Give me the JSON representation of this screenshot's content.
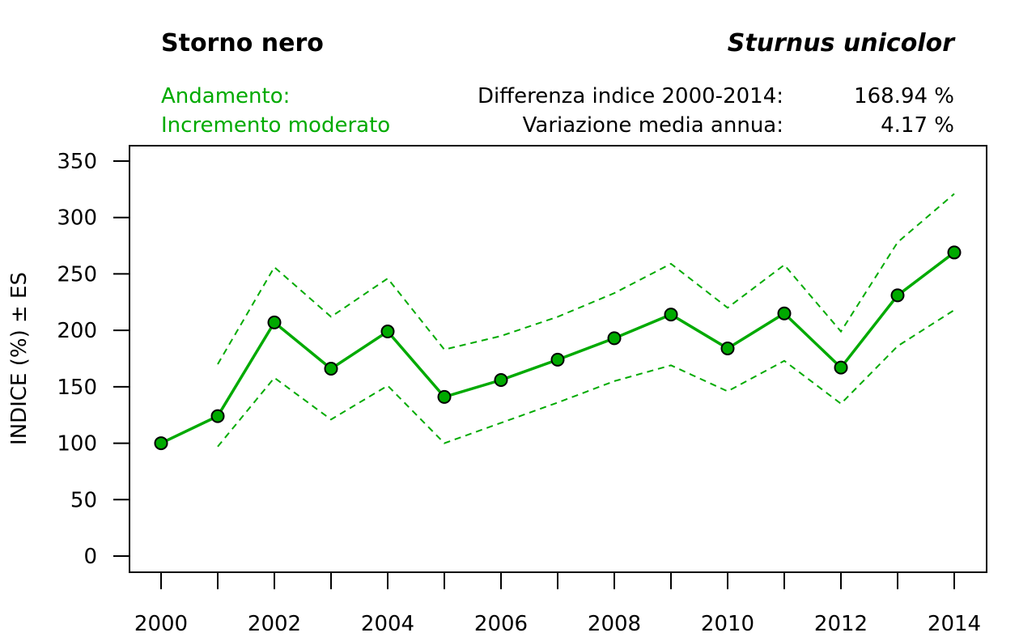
{
  "header": {
    "common_name": "Storno nero",
    "scientific_name": "Sturnus unicolor",
    "trend_label": "Andamento:",
    "trend_value": "Incremento moderato",
    "diff_label": "Differenza indice 2000-2014:",
    "diff_value": "168.94 %",
    "annual_label": "Variazione media annua:",
    "annual_value": "4.17 %"
  },
  "chart_data": {
    "type": "line",
    "xlabel": "",
    "ylabel": "INDICE (%) ± ES",
    "xlim": [
      2000,
      2014
    ],
    "ylim": [
      0,
      350
    ],
    "yticks": [
      0,
      50,
      100,
      150,
      200,
      250,
      300,
      350
    ],
    "xticks": [
      2000,
      2001,
      2002,
      2003,
      2004,
      2005,
      2006,
      2007,
      2008,
      2009,
      2010,
      2011,
      2012,
      2013,
      2014
    ],
    "xtick_labels": [
      "2000",
      "2002",
      "2004",
      "2006",
      "2008",
      "2010",
      "2012",
      "2014"
    ],
    "grid": false,
    "color": "#00aa00",
    "x": [
      2000,
      2001,
      2002,
      2003,
      2004,
      2005,
      2006,
      2007,
      2008,
      2009,
      2010,
      2011,
      2012,
      2013,
      2014
    ],
    "series": [
      {
        "name": "Indice",
        "style": "solid-markers",
        "values": [
          100,
          124,
          207,
          166,
          199,
          141,
          156,
          174,
          193,
          214,
          184,
          215,
          167,
          231,
          269
        ]
      },
      {
        "name": "Indice + ES",
        "style": "dashed",
        "values": [
          null,
          170,
          256,
          212,
          246,
          183,
          195,
          212,
          233,
          259,
          220,
          258,
          199,
          278,
          321
        ]
      },
      {
        "name": "Indice - ES",
        "style": "dashed",
        "values": [
          null,
          97,
          158,
          121,
          151,
          100,
          118,
          136,
          155,
          169,
          146,
          173,
          135,
          186,
          218
        ]
      }
    ]
  }
}
